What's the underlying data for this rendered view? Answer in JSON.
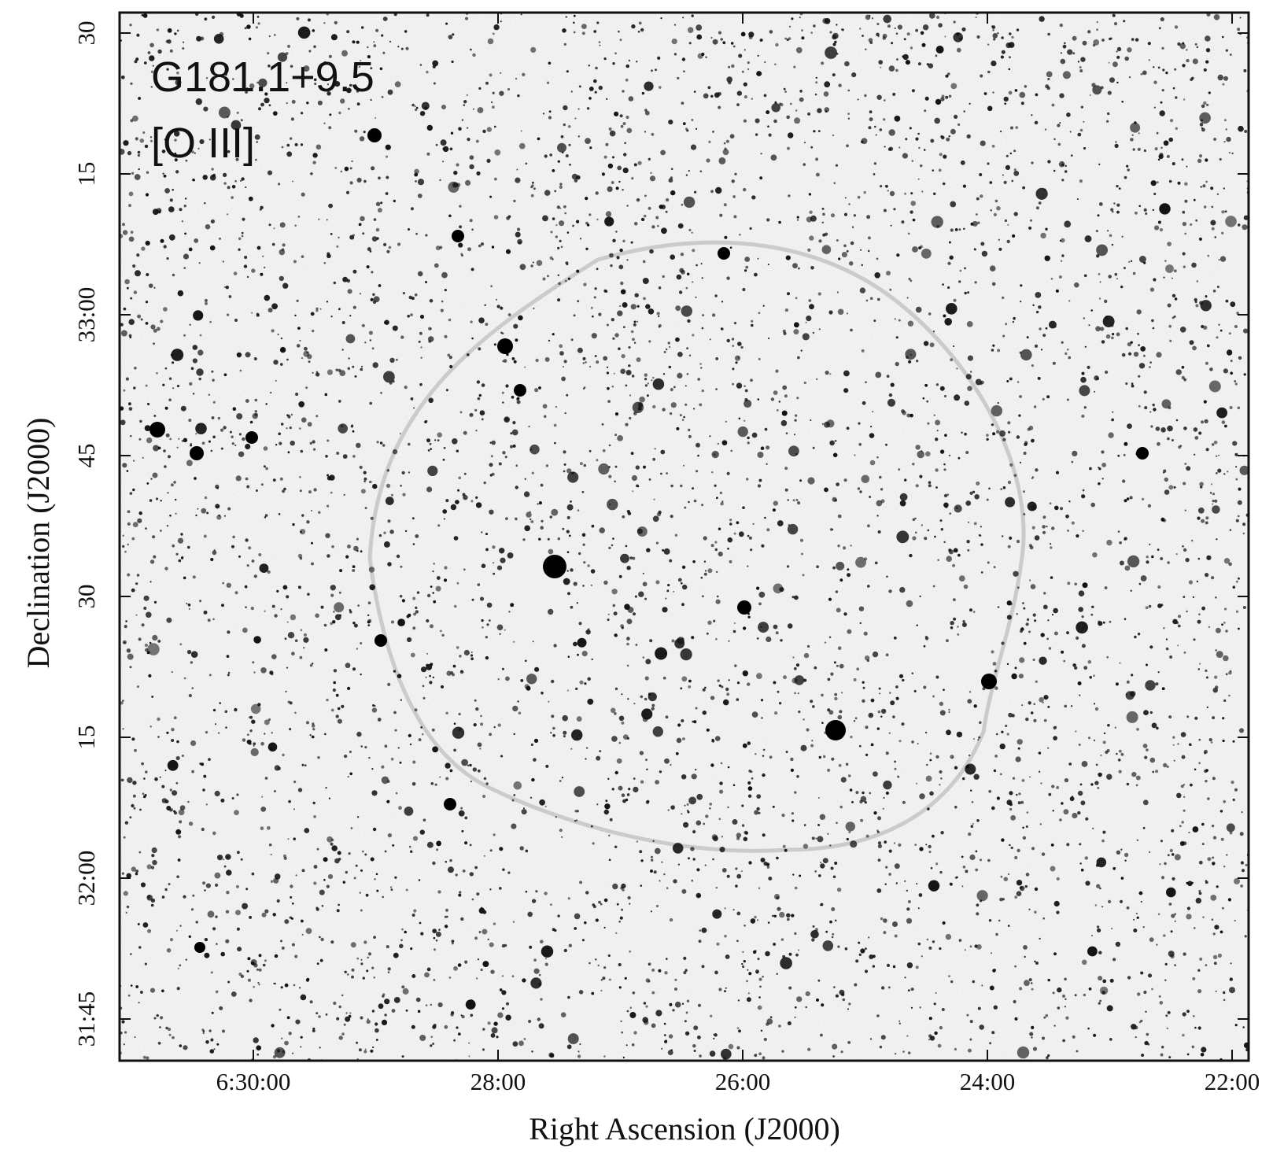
{
  "figure": {
    "annotations": [
      "G181.1+9.5",
      "[O III]"
    ],
    "x_axis": {
      "label": "Right Ascension (J2000)",
      "ticks": [
        "6:30:00",
        "28:00",
        "26:00",
        "24:00",
        "22:00"
      ]
    },
    "y_axis": {
      "label": "Declination (J2000)",
      "ticks": [
        "30",
        "15",
        "33:00",
        "45",
        "30",
        "15",
        "32:00",
        "31:45"
      ]
    }
  }
}
